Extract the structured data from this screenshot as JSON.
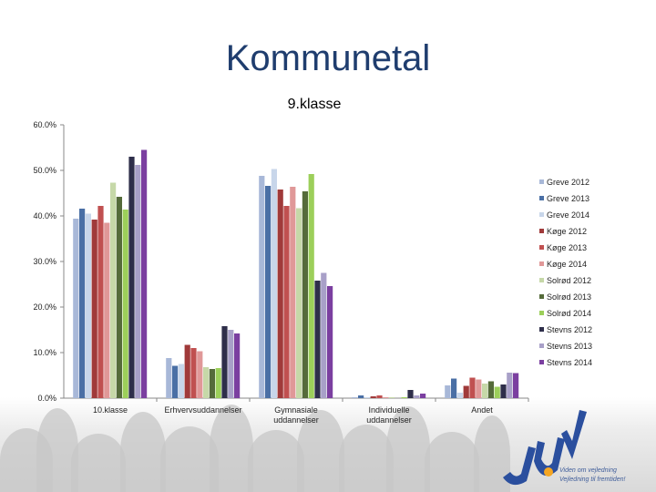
{
  "slide": {
    "title": "Kommunetal",
    "tagline_line1": "Viden om vejledning",
    "tagline_line2": "Vejledning til fremtiden!"
  },
  "logo": {
    "text": "UU",
    "icon": "juv-logo-icon",
    "color": "#2b4f9e",
    "accent": "#f5a623"
  },
  "chart_data": {
    "type": "bar",
    "title": "9.klasse",
    "xlabel": "",
    "ylabel": "",
    "ylim": [
      0,
      60
    ],
    "yticks": [
      "0.0%",
      "10.0%",
      "20.0%",
      "30.0%",
      "40.0%",
      "50.0%",
      "60.0%"
    ],
    "grid": false,
    "legend_position": "right",
    "categories": [
      "10.klasse",
      "Erhvervsuddannelser",
      "Gymnasiale uddannelser",
      "Individuelle uddannelser",
      "Andet"
    ],
    "series": [
      {
        "name": "Greve 2012",
        "color": "#a8b8d8",
        "values": [
          39.4,
          8.8,
          48.8,
          0.2,
          2.8
        ]
      },
      {
        "name": "Greve 2013",
        "color": "#4a6fa5",
        "values": [
          41.6,
          7.1,
          46.6,
          0.6,
          4.3
        ]
      },
      {
        "name": "Greve 2014",
        "color": "#c8d6ea",
        "values": [
          40.5,
          7.5,
          50.3,
          0.2,
          1.2
        ]
      },
      {
        "name": "Køge 2012",
        "color": "#a03a3a",
        "values": [
          39.2,
          11.7,
          45.8,
          0.4,
          2.7
        ]
      },
      {
        "name": "Køge 2013",
        "color": "#c05050",
        "values": [
          42.2,
          11.0,
          42.2,
          0.6,
          4.5
        ]
      },
      {
        "name": "Køge 2014",
        "color": "#e09898",
        "values": [
          38.5,
          10.3,
          46.4,
          0.2,
          4.1
        ]
      },
      {
        "name": "Solrød 2012",
        "color": "#c6d8a8",
        "values": [
          47.3,
          6.8,
          41.7,
          0.2,
          3.2
        ]
      },
      {
        "name": "Solrød 2013",
        "color": "#556b3a",
        "values": [
          44.2,
          6.4,
          45.4,
          0.0,
          3.7
        ]
      },
      {
        "name": "Solrød 2014",
        "color": "#9ccf5a",
        "values": [
          41.4,
          6.6,
          49.2,
          0.2,
          2.5
        ]
      },
      {
        "name": "Stevns 2012",
        "color": "#2e2e4a",
        "values": [
          53.0,
          15.8,
          25.8,
          1.8,
          3.0
        ]
      },
      {
        "name": "Stevns 2013",
        "color": "#a8a0c8",
        "values": [
          51.2,
          15.0,
          27.5,
          0.6,
          5.6
        ]
      },
      {
        "name": "Stevns 2014",
        "color": "#7b3fa0",
        "values": [
          54.5,
          14.2,
          24.6,
          1.0,
          5.5
        ]
      }
    ]
  }
}
